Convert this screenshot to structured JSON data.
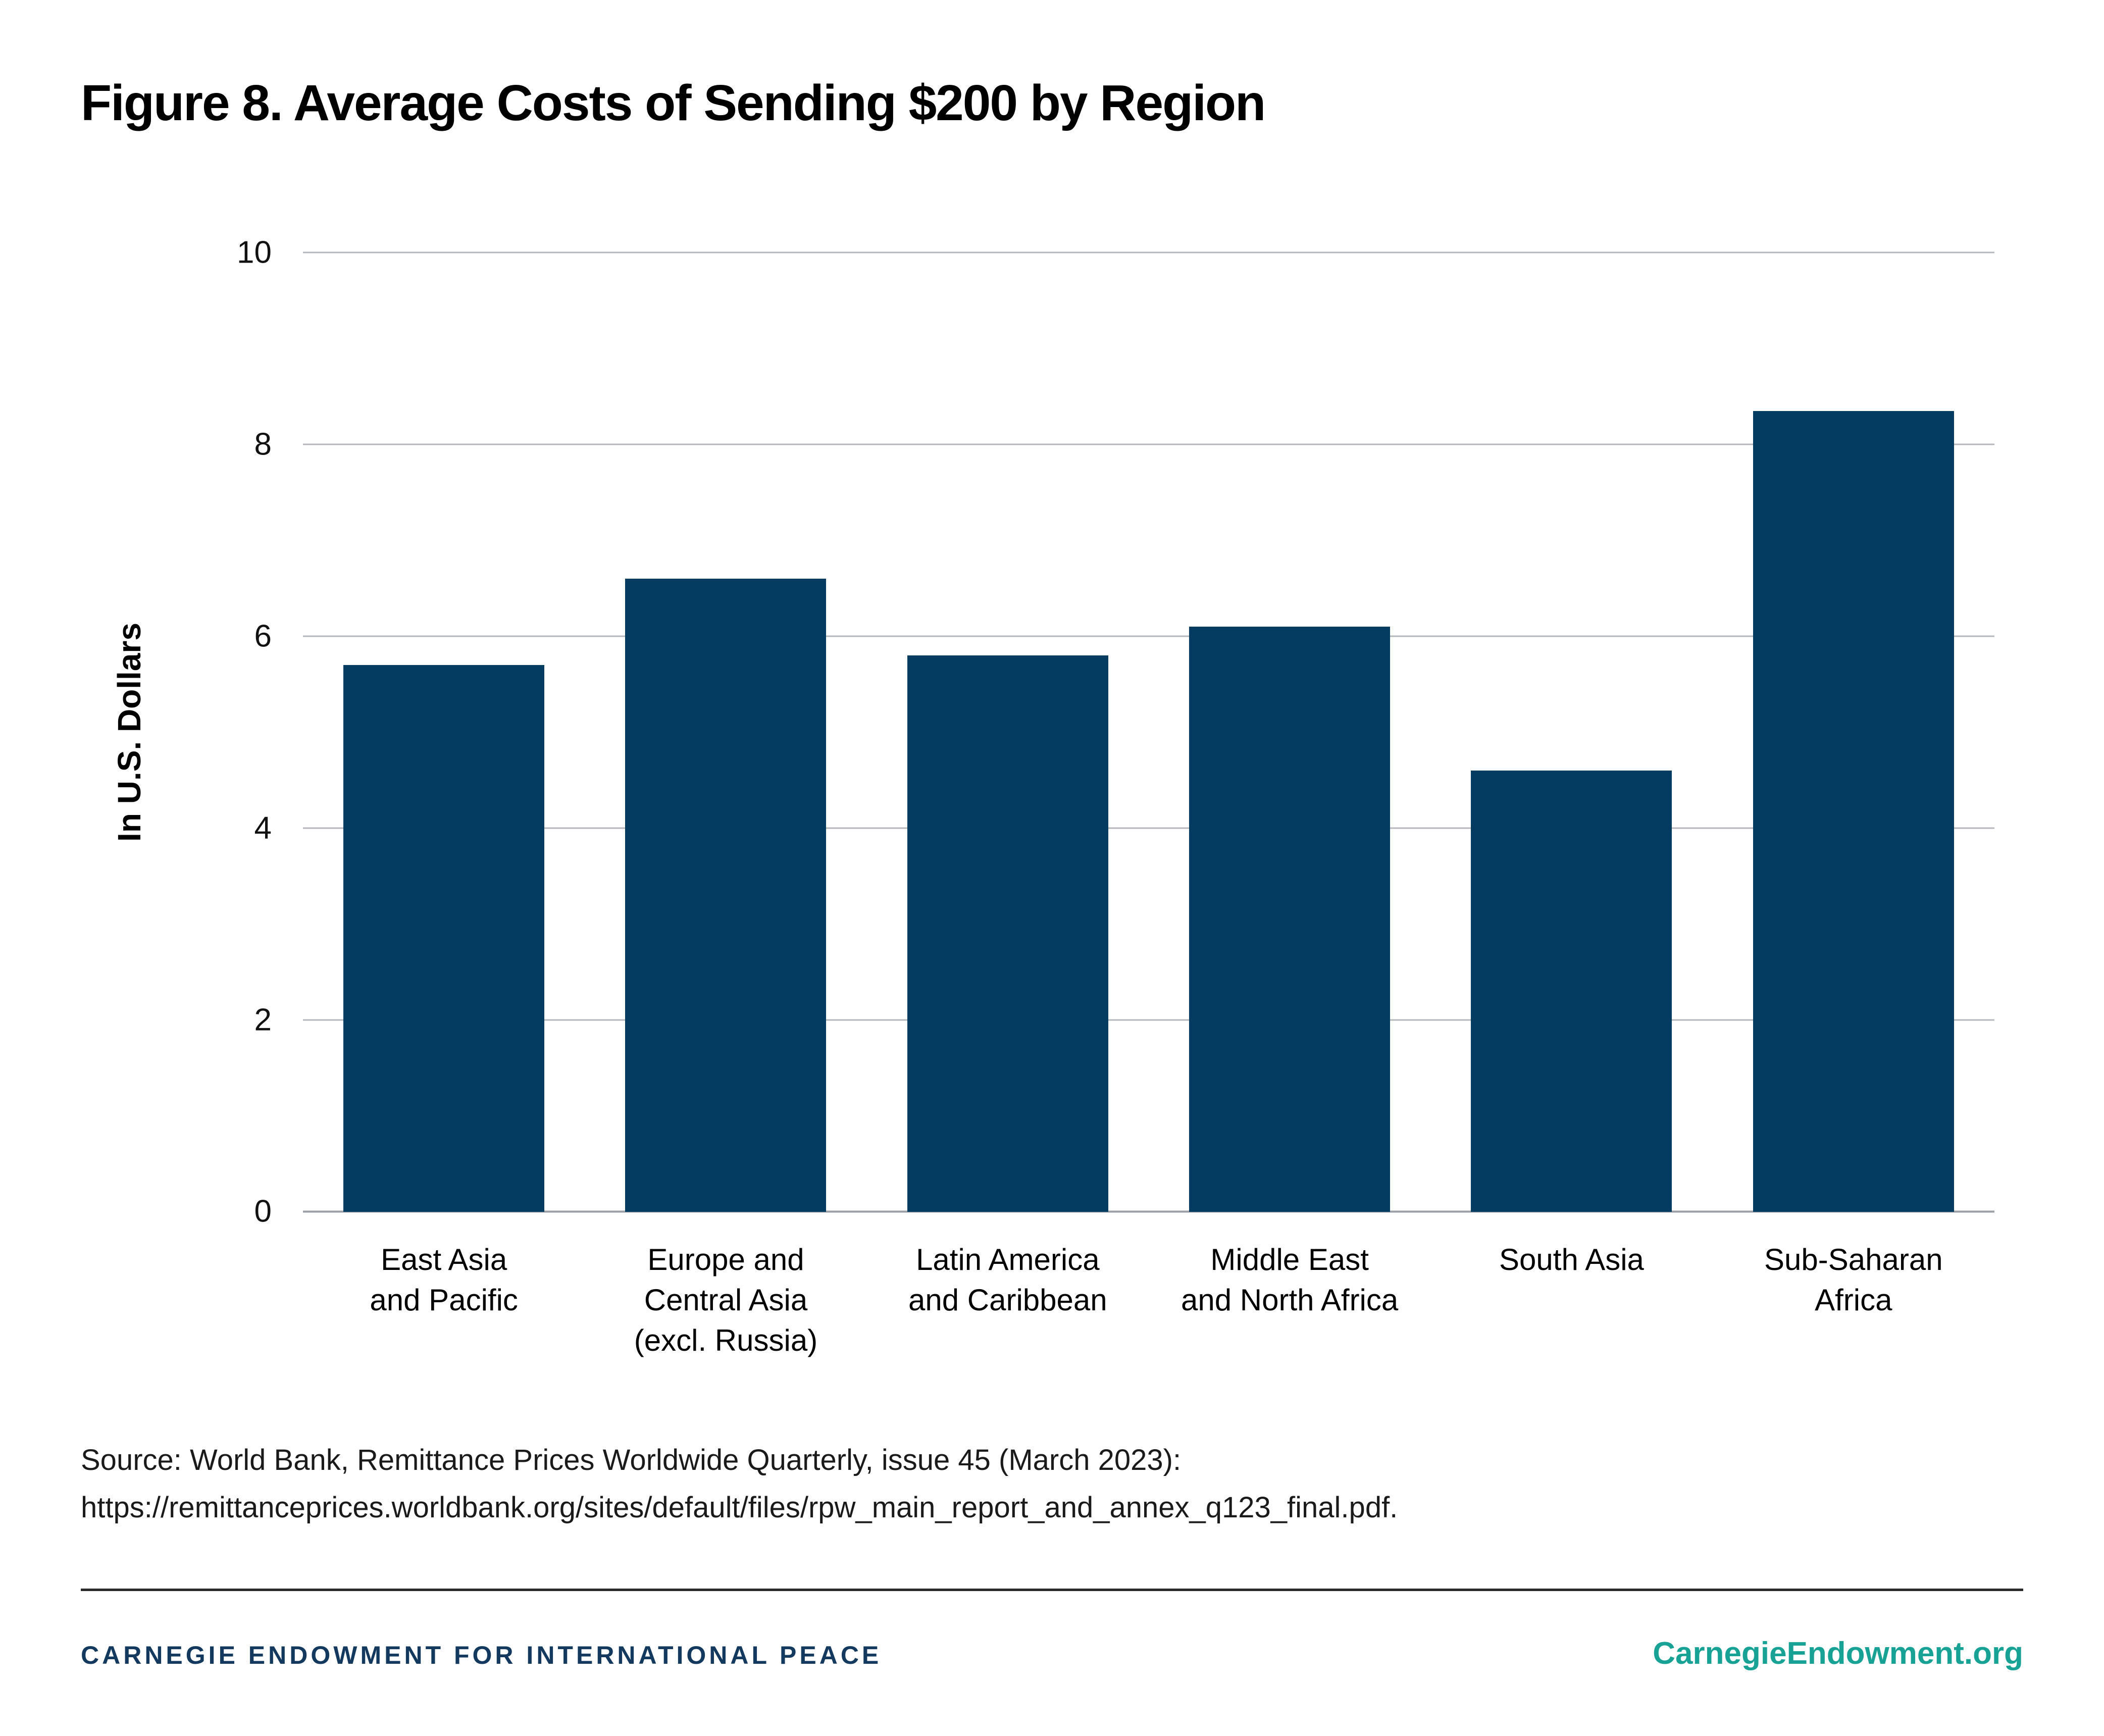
{
  "figure": {
    "title": "Figure 8. Average Costs of Sending $200 by Region",
    "source_line1": "Source: World Bank, Remittance Prices Worldwide Quarterly, issue 45 (March 2023):",
    "source_line2": "https://remittanceprices.worldbank.org/sites/default/files/rpw_main_report_and_annex_q123_final.pdf."
  },
  "footer": {
    "left": "CARNEGIE ENDOWMENT FOR INTERNATIONAL PEACE",
    "right": "CarnegieEndowment.org",
    "navy_color": "#14395F",
    "teal_color": "#18A296"
  },
  "chart_data": {
    "type": "bar",
    "title": "Figure 8. Average Costs of Sending $200 by Region",
    "xlabel": "",
    "ylabel": "In U.S. Dollars",
    "ylim": [
      0,
      10
    ],
    "yticks": [
      0,
      2,
      4,
      6,
      8,
      10
    ],
    "grid": true,
    "legend": "none",
    "bar_color": "#033B61",
    "categories": [
      "East Asia\nand Pacific",
      "Europe and\nCentral Asia\n(excl. Russia)",
      "Latin America\nand Caribbean",
      "Middle East\nand North Africa",
      "South Asia",
      "Sub-Saharan\nAfrica"
    ],
    "values": [
      5.7,
      6.6,
      5.8,
      6.1,
      4.6,
      8.35
    ]
  }
}
